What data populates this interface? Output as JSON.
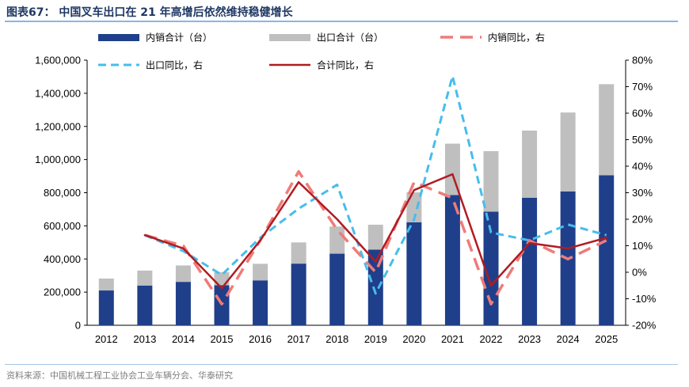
{
  "header": {
    "title": "图表67： 中国叉车出口在 21 年高增后依然维持稳健增长"
  },
  "footer": {
    "source": "资料来源：中国机械工程工业协会工业车辆分会、华泰研究"
  },
  "colors": {
    "domestic_bar": "#1f3f8a",
    "export_bar": "#bfbfbf",
    "domestic_yoy": "#ef7b78",
    "export_yoy": "#46bdec",
    "total_yoy": "#b01c22",
    "title": "#1f3864"
  },
  "chart_data": {
    "type": "bar",
    "categories": [
      "2012",
      "2013",
      "2014",
      "2015",
      "2016",
      "2017",
      "2018",
      "2019",
      "2020",
      "2021",
      "2022",
      "2023",
      "2024",
      "2025"
    ],
    "bar_series": [
      {
        "name": "内销合计（台）",
        "values": [
          210000,
          240000,
          262000,
          242000,
          271000,
          372000,
          432000,
          457000,
          622000,
          786000,
          686000,
          770000,
          808000,
          905000
        ]
      },
      {
        "name": "出口合计（台）",
        "values": [
          72000,
          90000,
          99000,
          78000,
          100000,
          128000,
          164000,
          150000,
          180000,
          310000,
          365000,
          405000,
          476000,
          550000
        ]
      }
    ],
    "line_series": [
      {
        "name": "内销同比，右",
        "values": [
          null,
          14,
          10,
          -12,
          12,
          38,
          16,
          0,
          34,
          28,
          -12,
          12,
          5,
          12
        ]
      },
      {
        "name": "出口同比，右",
        "values": [
          null,
          14,
          8,
          -1,
          13,
          24,
          33,
          -8,
          20,
          74,
          15,
          12,
          18,
          14
        ]
      },
      {
        "name": "合计同比，右",
        "values": [
          null,
          14,
          9,
          -6,
          12,
          34,
          20,
          4,
          31,
          37,
          -5,
          11,
          9,
          13
        ]
      }
    ],
    "y_left": {
      "min": 0,
      "max": 1600000,
      "step": 200000,
      "ticks": [
        "0",
        "200,000",
        "400,000",
        "600,000",
        "800,000",
        "1,000,000",
        "1,200,000",
        "1,400,000",
        "1,600,000"
      ]
    },
    "y_right": {
      "min": -20,
      "max": 80,
      "step": 10,
      "ticks": [
        "-20%",
        "-10%",
        "0%",
        "10%",
        "20%",
        "30%",
        "40%",
        "50%",
        "60%",
        "70%",
        "80%"
      ]
    },
    "stacked": true,
    "grid": false,
    "legend_position": "top"
  }
}
